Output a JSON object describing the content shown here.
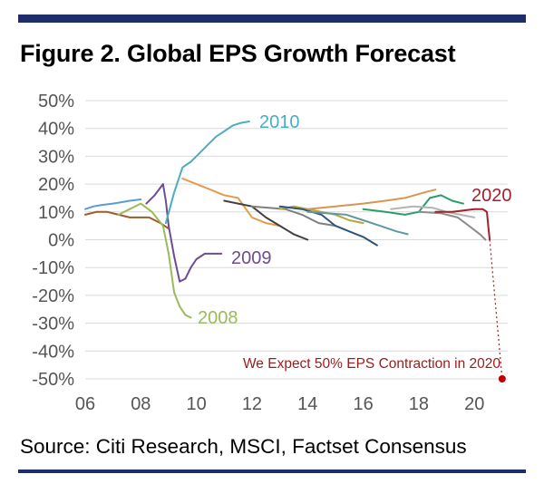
{
  "figure": {
    "title": "Figure 2. Global EPS Growth Forecast",
    "source": "Source: Citi Research, MSCI, Factset Consensus"
  },
  "chart_data": {
    "type": "line",
    "title": "Figure 2. Global EPS Growth Forecast",
    "xlabel": "",
    "ylabel": "",
    "xlim": [
      2006,
      2021.2
    ],
    "ylim": [
      -50,
      50
    ],
    "x_ticks": [
      "06",
      "08",
      "10",
      "12",
      "14",
      "16",
      "18",
      "20"
    ],
    "y_ticks": [
      "50%",
      "40%",
      "30%",
      "20%",
      "10%",
      "0%",
      "-10%",
      "-20%",
      "-30%",
      "-40%",
      "-50%"
    ],
    "grid": "horizontal",
    "legend": "none",
    "series": [
      {
        "color": "#5b9bd5",
        "x": [
          2006.0,
          2006.3,
          2006.6,
          2007.0,
          2007.3,
          2007.6,
          2008.0
        ],
        "y": [
          11,
          12,
          12.5,
          13,
          13.5,
          14,
          14.5
        ]
      },
      {
        "color": "#a05a2c",
        "x": [
          2006.0,
          2006.4,
          2006.8,
          2007.2,
          2007.6,
          2008.0,
          2008.3,
          2008.7,
          2009.0
        ],
        "y": [
          9,
          10,
          10,
          9,
          8,
          8,
          8,
          6,
          4
        ]
      },
      {
        "name": "2008",
        "color": "#9bbb59",
        "x": [
          2007.2,
          2007.6,
          2008.0,
          2008.4,
          2008.8,
          2009.0,
          2009.2,
          2009.4,
          2009.6,
          2009.8
        ],
        "y": [
          9,
          11,
          13,
          10,
          5,
          -5,
          -19,
          -24,
          -27,
          -28
        ]
      },
      {
        "name": "2009",
        "color": "#6d4c8f",
        "x": [
          2008.2,
          2008.5,
          2008.8,
          2008.9,
          2009.0,
          2009.2,
          2009.4,
          2009.6,
          2009.8,
          2010.0,
          2010.3,
          2010.6,
          2010.9
        ],
        "y": [
          13,
          16,
          20,
          14,
          5,
          -6,
          -15,
          -14,
          -10,
          -7,
          -5,
          -5,
          -5
        ]
      },
      {
        "name": "2010",
        "color": "#4bacc6",
        "x": [
          2008.9,
          2009.2,
          2009.5,
          2009.8,
          2010.1,
          2010.4,
          2010.7,
          2011.0,
          2011.3,
          2011.6,
          2011.9
        ],
        "y": [
          6,
          17,
          26,
          28,
          31,
          34,
          37,
          39,
          41,
          42,
          42.5
        ]
      },
      {
        "color": "#e59b49",
        "x": [
          2009.5,
          2010.0,
          2010.5,
          2011.0,
          2011.5,
          2012.0,
          2012.5,
          2013.0
        ],
        "y": [
          22,
          20,
          18,
          16,
          15,
          8,
          6,
          5
        ]
      },
      {
        "color": "#404040",
        "x": [
          2011.0,
          2011.5,
          2012.0,
          2012.5,
          2013.0,
          2013.5,
          2014.0
        ],
        "y": [
          14,
          13,
          12,
          8,
          5,
          2,
          0
        ]
      },
      {
        "color": "#7f7f7f",
        "x": [
          2012.0,
          2012.6,
          2013.2,
          2013.8,
          2014.4,
          2015.0
        ],
        "y": [
          12,
          11.5,
          11,
          9,
          6,
          5
        ]
      },
      {
        "color": "#b8a63a",
        "x": [
          2013.0,
          2013.5,
          2014.0,
          2014.5,
          2015.0,
          2015.5,
          2016.0
        ],
        "y": [
          11,
          12,
          11,
          10,
          9,
          7,
          6
        ]
      },
      {
        "color": "#2e5579",
        "x": [
          2013.0,
          2013.8,
          2014.5,
          2015.0,
          2015.5,
          2016.0,
          2016.5
        ],
        "y": [
          12,
          11,
          9,
          5,
          3,
          1,
          -2
        ]
      },
      {
        "color": "#5f9aa0",
        "x": [
          2014.0,
          2014.7,
          2015.4,
          2016.0,
          2016.6,
          2017.2,
          2017.6
        ],
        "y": [
          10,
          9.5,
          9,
          7,
          5,
          3,
          2
        ]
      },
      {
        "color": "#d99550",
        "x": [
          2014.0,
          2015.0,
          2016.0,
          2016.8,
          2017.5,
          2018.2,
          2018.6
        ],
        "y": [
          11,
          12,
          13,
          14,
          15,
          17,
          18
        ]
      },
      {
        "color": "#2a9d6a",
        "x": [
          2016.0,
          2016.8,
          2017.5,
          2018.0,
          2018.4,
          2018.8,
          2019.2,
          2019.6
        ],
        "y": [
          11,
          10,
          9,
          10,
          15,
          16,
          14,
          13
        ]
      },
      {
        "color": "#b3b3b3",
        "x": [
          2017.0,
          2017.8,
          2018.5,
          2019.0,
          2019.5,
          2020.0
        ],
        "y": [
          11,
          12,
          11.5,
          10,
          9,
          8
        ]
      },
      {
        "color": "#8c8c8c",
        "x": [
          2018.0,
          2018.8,
          2019.4,
          2019.8,
          2020.2,
          2020.4
        ],
        "y": [
          10,
          9.5,
          8,
          5,
          2,
          0
        ]
      },
      {
        "name": "2020",
        "color": "#a31f2a",
        "x": [
          2018.6,
          2019.2,
          2019.6,
          2020.0,
          2020.3,
          2020.45,
          2020.5,
          2020.55
        ],
        "y": [
          10,
          10,
          10.5,
          11,
          11,
          10,
          5,
          0
        ]
      }
    ],
    "series_labels": [
      {
        "text": "2010",
        "color": "#4bacc6"
      },
      {
        "text": "2020",
        "color": "#a31f2a"
      },
      {
        "text": "2009",
        "color": "#6d4c8f"
      },
      {
        "text": "2008",
        "color": "#9bbb59"
      }
    ],
    "annotation": {
      "text": "We Expect 50% EPS Contraction in 2020",
      "color": "#9b1b1b",
      "point": {
        "x": 2021.0,
        "y": -50
      },
      "from": {
        "x": 2020.55,
        "y": 0
      }
    }
  }
}
